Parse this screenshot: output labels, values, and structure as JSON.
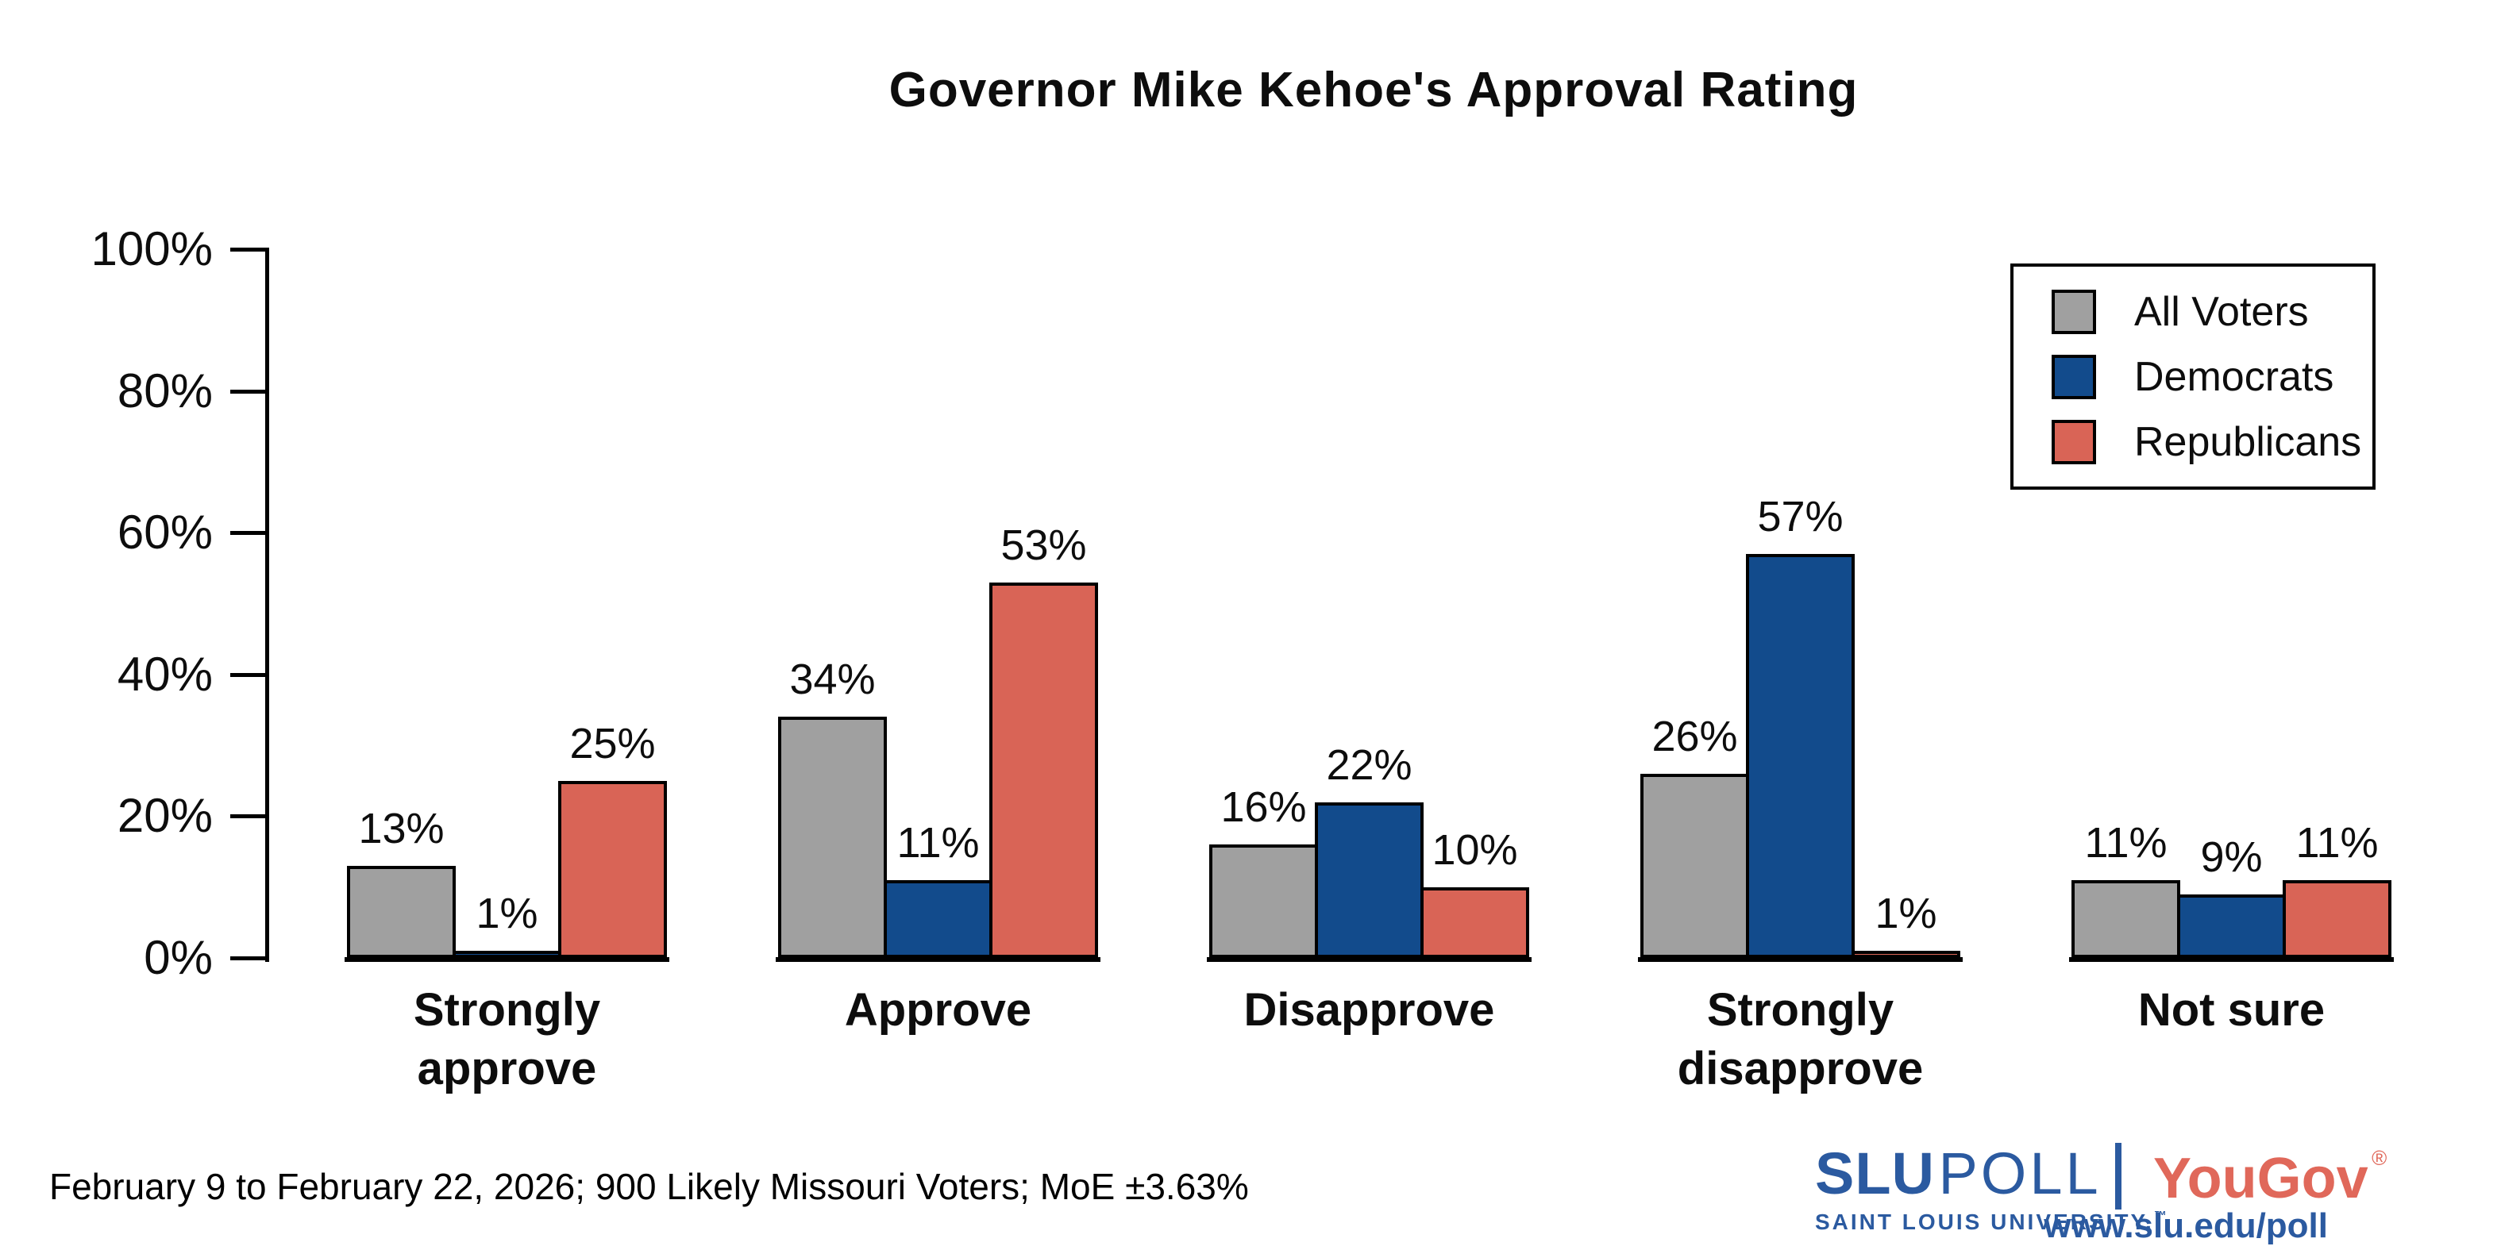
{
  "title": "Governor Mike Kehoe's Approval Rating",
  "footer": {
    "note": "February 9 to February 22, 2026; 900 Likely Missouri Voters; MoE ±3.63%"
  },
  "branding": {
    "slu": "SLU",
    "poll": "POLL",
    "slu_subtitle": "SAINT LOUIS UNIVERSITY.",
    "trademark": "™",
    "yougov": "YouGov",
    "registered": "®",
    "url": "www.slu.edu/poll",
    "slu_blue": "#2b5aa0",
    "yougov_red": "#e0685a"
  },
  "chart_data": {
    "type": "bar",
    "title": "Governor Mike Kehoe's Approval Rating",
    "categories": [
      "Strongly approve",
      "Approve",
      "Disapprove",
      "Strongly disapprove",
      "Not sure"
    ],
    "series": [
      {
        "name": "All Voters",
        "color": "#a0a0a0",
        "values": [
          13,
          34,
          16,
          26,
          11
        ]
      },
      {
        "name": "Democrats",
        "color": "#124b8c",
        "values": [
          1,
          11,
          22,
          57,
          9
        ]
      },
      {
        "name": "Republicans",
        "color": "#d96456",
        "values": [
          25,
          53,
          10,
          1,
          11
        ]
      }
    ],
    "value_label_format": "{v}%",
    "xlabel": "",
    "ylabel": "",
    "ylim": [
      0,
      100
    ],
    "ytick_labels": [
      "0%",
      "20%",
      "40%",
      "60%",
      "80%",
      "100%"
    ],
    "grid": false,
    "legend_position": "top-right",
    "bar_outline_color": "#000000"
  }
}
